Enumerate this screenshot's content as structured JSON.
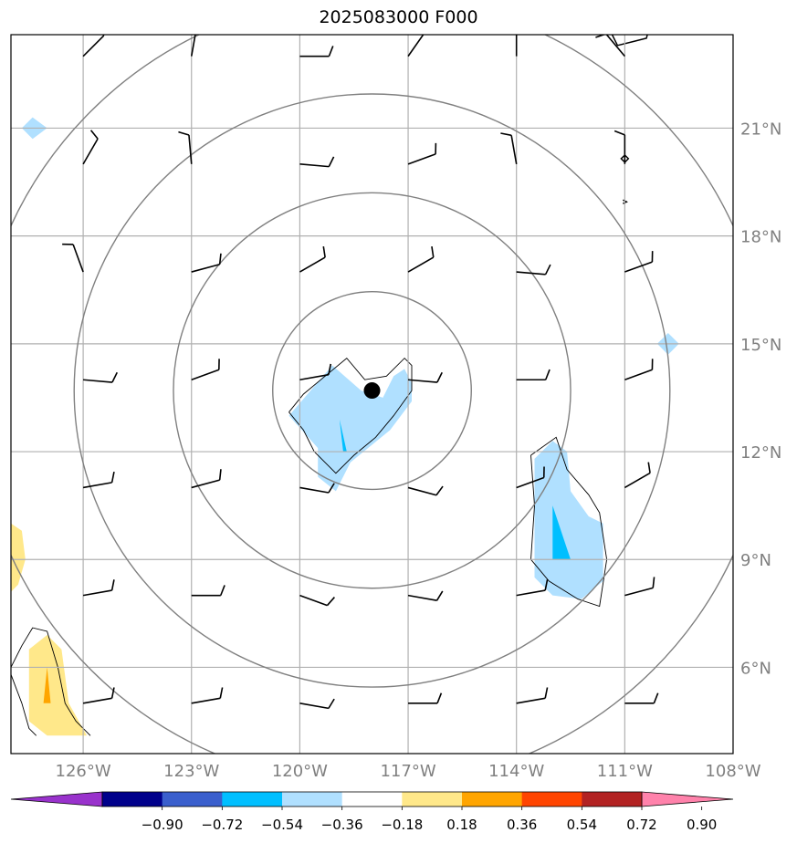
{
  "title": "2025083000 F000",
  "chart_data": {
    "type": "heatmap",
    "title": "2025083000 F000",
    "xlim": [
      -128,
      -108
    ],
    "ylim": [
      3.6,
      23.6
    ],
    "x_ticks": [
      {
        "value": -126,
        "label": "126°W"
      },
      {
        "value": -123,
        "label": "123°W"
      },
      {
        "value": -120,
        "label": "120°W"
      },
      {
        "value": -117,
        "label": "117°W"
      },
      {
        "value": -114,
        "label": "114°W"
      },
      {
        "value": -111,
        "label": "111°W"
      },
      {
        "value": -108,
        "label": "108°W"
      }
    ],
    "y_ticks": [
      {
        "value": 6,
        "label": "6°N"
      },
      {
        "value": 9,
        "label": "9°N"
      },
      {
        "value": 12,
        "label": "12°N"
      },
      {
        "value": 15,
        "label": "15°N"
      },
      {
        "value": 18,
        "label": "18°N"
      },
      {
        "value": 21,
        "label": "21°N"
      }
    ],
    "grid": true,
    "center_marker": {
      "lon": -118.0,
      "lat": 13.7
    },
    "range_rings_deg": [
      2.75,
      5.5,
      8.25,
      11.0
    ],
    "colorbar": {
      "levels": [
        "−0.90",
        "−0.72",
        "−0.54",
        "−0.36",
        "−0.18",
        "0.18",
        "0.36",
        "0.54",
        "0.72",
        "0.90"
      ],
      "colors": [
        "#9932cc",
        "#00008b",
        "#3a5fcd",
        "#00bfff",
        "#b0e0ff",
        "#ffffff",
        "#ffe88a",
        "#ffa500",
        "#ff4500",
        "#b22222",
        "#ff82ab"
      ],
      "extend": "both"
    },
    "filled_regions": [
      {
        "level": "-0.36 to -0.18",
        "color": "#b0e0ff",
        "lonlat": [
          [
            -120.3,
            13.0
          ],
          [
            -119.1,
            14.4
          ],
          [
            -118.3,
            13.7
          ],
          [
            -117.7,
            13.5
          ],
          [
            -117.4,
            14.1
          ],
          [
            -117.1,
            14.3
          ],
          [
            -116.9,
            13.9
          ],
          [
            -116.9,
            13.4
          ],
          [
            -117.5,
            12.6
          ],
          [
            -118.6,
            11.7
          ],
          [
            -119.0,
            10.9
          ],
          [
            -119.5,
            11.3
          ],
          [
            -119.5,
            12.1
          ]
        ]
      },
      {
        "level": "-0.54 to -0.36",
        "color": "#00bfff",
        "lonlat": [
          [
            -118.9,
            12.9
          ],
          [
            -118.8,
            12.0
          ],
          [
            -118.7,
            12.0
          ]
        ]
      },
      {
        "level": "-0.36 to -0.18",
        "color": "#b0e0ff",
        "lonlat": [
          [
            -113.5,
            11.8
          ],
          [
            -113.0,
            12.3
          ],
          [
            -112.6,
            12.0
          ],
          [
            -112.5,
            10.9
          ],
          [
            -112.0,
            10.2
          ],
          [
            -111.6,
            10.0
          ],
          [
            -111.6,
            8.4
          ],
          [
            -112.2,
            7.9
          ],
          [
            -113.0,
            8.0
          ],
          [
            -113.5,
            8.5
          ],
          [
            -113.5,
            10.4
          ]
        ]
      },
      {
        "level": "-0.54 to -0.36",
        "color": "#00bfff",
        "lonlat": [
          [
            -113.0,
            10.5
          ],
          [
            -112.5,
            9.0
          ],
          [
            -113.0,
            9.0
          ]
        ]
      },
      {
        "level": "0.18 to 0.36",
        "color": "#ffe88a",
        "lonlat": [
          [
            -128.0,
            10.0
          ],
          [
            -127.7,
            9.8
          ],
          [
            -127.6,
            9.0
          ],
          [
            -127.8,
            8.3
          ],
          [
            -128.0,
            8.1
          ]
        ]
      },
      {
        "level": "0.18 to 0.36",
        "color": "#ffe88a",
        "lonlat": [
          [
            -127.5,
            6.5
          ],
          [
            -127.0,
            6.9
          ],
          [
            -126.6,
            6.5
          ],
          [
            -126.4,
            5.0
          ],
          [
            -125.9,
            4.1
          ],
          [
            -127.0,
            4.1
          ],
          [
            -127.5,
            4.5
          ]
        ]
      },
      {
        "level": "0.36 to 0.54",
        "color": "#ffa500",
        "lonlat": [
          [
            -127.0,
            6.0
          ],
          [
            -126.9,
            5.0
          ],
          [
            -127.1,
            5.0
          ]
        ]
      },
      {
        "level": "-0.36 to -0.18",
        "color": "#b0e0ff",
        "lonlat": [
          [
            -127.4,
            21.3
          ],
          [
            -127.0,
            21.0
          ],
          [
            -127.4,
            20.7
          ],
          [
            -127.7,
            21.0
          ]
        ]
      },
      {
        "level": "-0.36 to -0.18",
        "color": "#b0e0ff",
        "lonlat": [
          [
            -109.8,
            15.3
          ],
          [
            -109.5,
            15.0
          ],
          [
            -109.8,
            14.7
          ],
          [
            -110.1,
            15.0
          ]
        ]
      }
    ],
    "contour_lines": [
      {
        "lonlat": [
          [
            -120.3,
            13.1
          ],
          [
            -119.9,
            13.6
          ],
          [
            -119.3,
            14.1
          ],
          [
            -118.7,
            14.6
          ],
          [
            -118.2,
            14.0
          ],
          [
            -117.6,
            14.1
          ],
          [
            -117.1,
            14.6
          ],
          [
            -116.9,
            14.4
          ],
          [
            -116.9,
            13.7
          ],
          [
            -117.4,
            13.0
          ],
          [
            -117.9,
            12.4
          ],
          [
            -118.5,
            11.9
          ],
          [
            -119.0,
            11.4
          ],
          [
            -119.6,
            12.0
          ],
          [
            -119.9,
            12.6
          ],
          [
            -120.3,
            13.1
          ]
        ]
      },
      {
        "lonlat": [
          [
            -113.6,
            11.9
          ],
          [
            -112.9,
            12.4
          ],
          [
            -112.6,
            11.5
          ],
          [
            -112.0,
            10.8
          ],
          [
            -111.7,
            10.3
          ],
          [
            -111.5,
            9.0
          ],
          [
            -111.7,
            7.7
          ],
          [
            -112.3,
            7.9
          ],
          [
            -113.1,
            8.4
          ],
          [
            -113.6,
            9.0
          ],
          [
            -113.5,
            10.5
          ],
          [
            -113.6,
            11.9
          ]
        ]
      },
      {
        "lonlat": [
          [
            -128.0,
            6.0
          ],
          [
            -127.7,
            6.6
          ],
          [
            -127.4,
            7.1
          ],
          [
            -127.0,
            7.0
          ],
          [
            -126.7,
            6.0
          ],
          [
            -126.5,
            5.0
          ],
          [
            -126.2,
            4.5
          ],
          [
            -125.8,
            4.1
          ]
        ]
      },
      {
        "lonlat": [
          [
            -128.0,
            5.8
          ],
          [
            -127.7,
            5.0
          ],
          [
            -127.5,
            4.3
          ],
          [
            -127.3,
            4.1
          ]
        ]
      },
      {
        "lonlat": [
          [
            -108.0,
            23.9
          ],
          [
            -108.0,
            23.6
          ]
        ]
      }
    ],
    "wind_barbs": {
      "lons": [
        -126,
        -123,
        -120,
        -117,
        -114,
        -111,
        -108
      ],
      "lats": [
        23,
        20,
        17,
        14,
        11,
        8,
        5
      ],
      "directions_deg": [
        [
          45,
          10,
          90,
          35,
          0,
          320,
          80
        ],
        [
          30,
          355,
          95,
          70,
          350,
          0,
          45
        ],
        [
          340,
          75,
          60,
          60,
          95,
          70,
          80
        ],
        [
          95,
          70,
          80,
          95,
          90,
          70,
          80
        ],
        [
          80,
          75,
          100,
          105,
          70,
          60,
          80
        ],
        [
          80,
          90,
          110,
          100,
          80,
          75,
          50
        ],
        [
          80,
          80,
          100,
          90,
          80,
          90,
          80
        ]
      ],
      "speeds_kt": [
        [
          10,
          10,
          10,
          10,
          10,
          10,
          10
        ],
        [
          10,
          10,
          10,
          10,
          10,
          10,
          10
        ],
        [
          10,
          10,
          10,
          10,
          10,
          10,
          10
        ],
        [
          10,
          10,
          10,
          10,
          10,
          10,
          10
        ],
        [
          10,
          10,
          10,
          10,
          10,
          10,
          10
        ],
        [
          10,
          10,
          10,
          10,
          10,
          10,
          10
        ],
        [
          10,
          10,
          10,
          10,
          10,
          10,
          10
        ]
      ]
    },
    "coastlines": [
      {
        "lonlat": [
          [
            -111.5,
            23.9
          ],
          [
            -111.2,
            23.3
          ],
          [
            -110.8,
            23.4
          ],
          [
            -110.4,
            23.5
          ],
          [
            -110.3,
            23.9
          ]
        ]
      },
      {
        "lonlat": [
          [
            -111.0,
            20.05
          ],
          [
            -110.9,
            20.15
          ],
          [
            -111.0,
            20.25
          ],
          [
            -111.1,
            20.15
          ],
          [
            -111.0,
            20.05
          ]
        ]
      },
      {
        "lonlat": [
          [
            -111.05,
            19.0
          ],
          [
            -110.95,
            18.95
          ],
          [
            -111.05,
            18.9
          ]
        ]
      }
    ]
  }
}
